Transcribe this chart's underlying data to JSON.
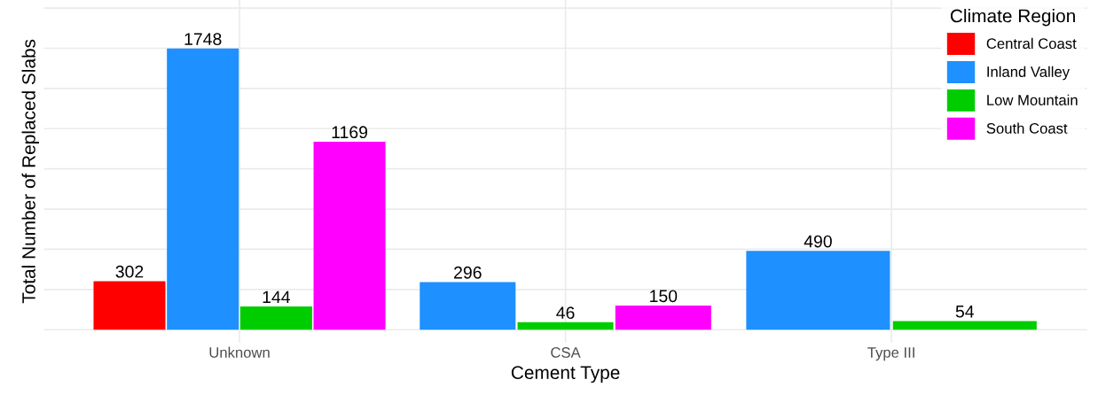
{
  "chart_data": {
    "type": "bar",
    "xlabel": "Cement Type",
    "ylabel": "Total Number of Replaced Slabs",
    "legend_title": "Climate Region",
    "categories": [
      "Unknown",
      "CSA",
      "Type III"
    ],
    "series": [
      {
        "name": "Central Coast",
        "color": "#ff0000",
        "values": [
          302,
          null,
          null
        ]
      },
      {
        "name": "Inland Valley",
        "color": "#1e90ff",
        "values": [
          1748,
          296,
          490
        ]
      },
      {
        "name": "Low Mountain",
        "color": "#00cd00",
        "values": [
          144,
          46,
          54
        ]
      },
      {
        "name": "South Coast",
        "color": "#ff00ff",
        "values": [
          1169,
          150,
          null
        ]
      }
    ],
    "ylim": [
      -80,
      2050
    ],
    "yticks": [
      {
        "value": 0,
        "label": null
      },
      {
        "value": 250,
        "label": null
      },
      {
        "value": 500,
        "label": null
      },
      {
        "value": 750,
        "label": null
      },
      {
        "value": 1000,
        "label": null
      },
      {
        "value": 1250,
        "label": null
      },
      {
        "value": 1500,
        "label": null
      },
      {
        "value": 1750,
        "label": null
      },
      {
        "value": 2000,
        "label": null
      }
    ],
    "tick_labels": "x",
    "grid": true,
    "legend": "top right",
    "data_labels": true
  }
}
